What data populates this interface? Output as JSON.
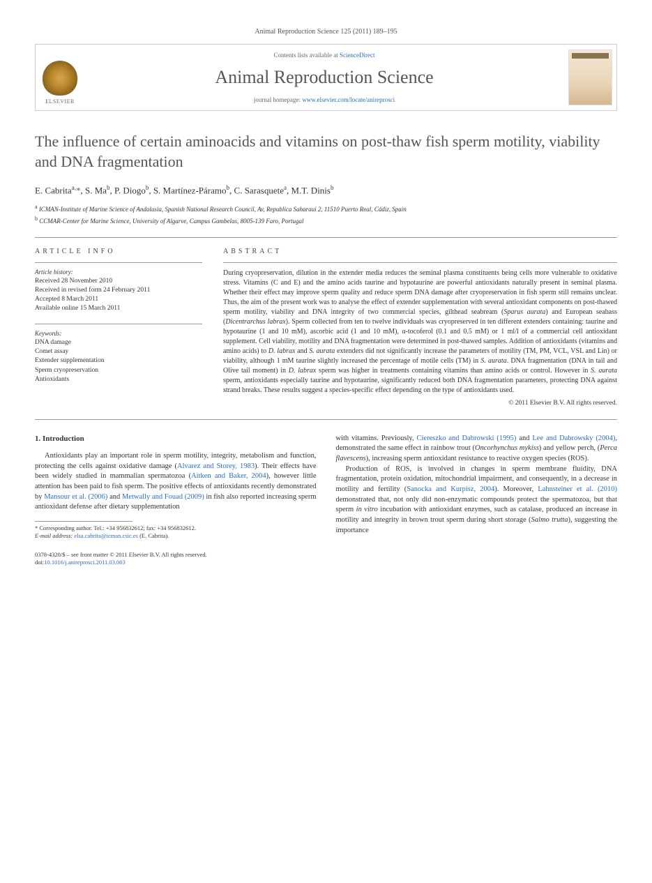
{
  "header": {
    "citation": "Animal Reproduction Science 125 (2011) 189–195",
    "contents_prefix": "Contents lists available at ",
    "contents_link": "ScienceDirect",
    "journal_name": "Animal Reproduction Science",
    "homepage_prefix": "journal homepage: ",
    "homepage_link": "www.elsevier.com/locate/anireprosci",
    "elsevier_label": "ELSEVIER",
    "cover_text_top": "animal",
    "cover_text_bottom": "reproduction"
  },
  "title": "The influence of certain aminoacids and vitamins on post-thaw fish sperm motility, viability and DNA fragmentation",
  "authors_html": "E. Cabrita<sup>a,</sup><span class='corr'>*</span>, S. Ma<sup>b</sup>, P. Diogo<sup>b</sup>, S. Martínez-Páramo<sup>b</sup>, C. Sarasquete<sup>a</sup>, M.T. Dinis<sup>b</sup>",
  "affiliations": [
    {
      "marker": "a",
      "text": "ICMAN-Institute of Marine Science of Andalusia, Spanish National Research Council, Av, Republica Saharaui 2, 11510 Puerto Real, Cádiz, Spain"
    },
    {
      "marker": "b",
      "text": "CCMAR-Center for Marine Science, University of Algarve, Campus Gambelas, 8005-139 Faro, Portugal"
    }
  ],
  "article_info": {
    "heading": "ARTICLE INFO",
    "history_head": "Article history:",
    "history": [
      "Received 28 November 2010",
      "Received in revised form 24 February 2011",
      "Accepted 8 March 2011",
      "Available online 15 March 2011"
    ],
    "keywords_head": "Keywords:",
    "keywords": [
      "DNA damage",
      "Comet assay",
      "Extender supplementation",
      "Sperm cryopreservation",
      "Antioxidants"
    ]
  },
  "abstract": {
    "heading": "ABSTRACT",
    "text": "During cryopreservation, dilution in the extender media reduces the seminal plasma constituents being cells more vulnerable to oxidative stress. Vitamins (C and E) and the amino acids taurine and hypotaurine are powerful antioxidants naturally present in seminal plasma. Whether their effect may improve sperm quality and reduce sperm DNA damage after cryopreservation in fish sperm still remains unclear. Thus, the aim of the present work was to analyse the effect of extender supplementation with several antioxidant components on post-thawed sperm motility, viability and DNA integrity of two commercial species, gilthead seabream (Sparus aurata) and European seabass (Dicentrarchus labrax). Sperm collected from ten to twelve individuals was cryopreserved in ten different extenders containing: taurine and hypotaurine (1 and 10 mM), ascorbic acid (1 and 10 mM), α-tocoferol (0.1 and 0.5 mM) or 1 ml/l of a commercial cell antioxidant supplement. Cell viability, motility and DNA fragmentation were determined in post-thawed samples. Addition of antioxidants (vitamins and amino acids) to D. labrax and S. aurata extenders did not significantly increase the parameters of motility (TM, PM, VCL, VSL and Lin) or viability, although 1 mM taurine slightly increased the percentage of motile cells (TM) in S. aurata. DNA fragmentation (DNA in tail and Olive tail moment) in D. labrax sperm was higher in treatments containing vitamins than amino acids or control. However in S. aurata sperm, antioxidants especially taurine and hypotaurine, significantly reduced both DNA fragmentation parameters, protecting DNA against strand breaks. These results suggest a species-specific effect depending on the type of antioxidants used.",
    "copyright": "© 2011 Elsevier B.V. All rights reserved."
  },
  "intro": {
    "heading": "1. Introduction",
    "para1_pre": "Antioxidants play an important role in sperm motility, integrity, metabolism and function, protecting the cells against oxidative damage (",
    "para1_link1": "Alvarez and Storey, 1983",
    "para1_mid1": "). Their effects have been widely studied in mammalian spermatozoa (",
    "para1_link2": "Aitken and Baker, 2004",
    "para1_mid2": "), however little attention has been paid to fish sperm. The positive effects of antioxidants recently demonstrated by ",
    "para1_link3": "Mansour et al. (2006)",
    "para1_mid3": " and ",
    "para1_link4": "Metwally and Fouad (2009)",
    "para1_post": " in fish also reported increasing sperm antioxidant defense after dietary supplementation",
    "para2_pre": "with vitamins. Previously, ",
    "para2_link1": "Ciereszko and Dabrowski (1995)",
    "para2_mid1": " and ",
    "para2_link2": "Lee and Dabrowsky (2004)",
    "para2_mid2": ", demonstrated the same effect in rainbow trout (",
    "para2_it1": "Oncorhynchus mykiss",
    "para2_mid3": ") and yellow perch, (",
    "para2_it2": "Perca flavescens",
    "para2_post": "), increasing sperm antioxidant resistance to reactive oxygen species (ROS).",
    "para3_pre": "Production of ROS, is involved in changes in sperm membrane fluidity, DNA fragmentation, protein oxidation, mitochondrial impairment, and consequently, in a decrease in motility and fertility (",
    "para3_link1": "Sanocka and Kurpisz, 2004",
    "para3_mid1": "). Moreover, ",
    "para3_link2": "Lahnsteiner et al. (2010)",
    "para3_mid2": " demonstrated that, not only did non-enzymatic compounds protect the spermatozoa, but that sperm ",
    "para3_it1": "in vitro",
    "para3_mid3": " incubation with antioxidant enzymes, such as catalase, produced an increase in motility and integrity in brown trout sperm during short storage (",
    "para3_it2": "Salmo trutta",
    "para3_post": "), suggesting the importance"
  },
  "footnote": {
    "corr_label": "* Corresponding author. Tel.: +34 956832612; fax: +34 956832612.",
    "email_label": "E-mail address:",
    "email": "elsa.cabrita@icman.csic.es",
    "email_suffix": " (E. Cabrita)."
  },
  "footer": {
    "line1": "0378-4320/$ – see front matter © 2011 Elsevier B.V. All rights reserved.",
    "doi_prefix": "doi:",
    "doi": "10.1016/j.anireprosci.2011.03.003"
  }
}
